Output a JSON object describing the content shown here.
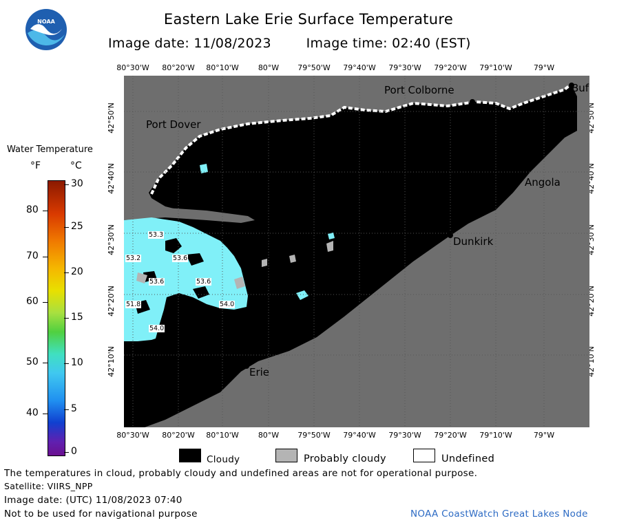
{
  "header": {
    "title": "Eastern Lake Erie Surface Temperature",
    "image_date": "Image date: 11/08/2023",
    "image_time": "Image time: 02:40 (EST)"
  },
  "logo": {
    "text": "NOAA",
    "colors": [
      "#1f5fb0",
      "#4db8e8",
      "#ffffff"
    ]
  },
  "scale": {
    "title": "Water Temperature",
    "f_unit": "°F",
    "c_unit": "°C",
    "f_ticks": [
      "80",
      "70",
      "60",
      "50",
      "40"
    ],
    "c_ticks": [
      "30",
      "25",
      "20",
      "15",
      "10",
      "5",
      "0"
    ]
  },
  "axes": {
    "lon_labels": [
      "80°30'W",
      "80°20'W",
      "80°10'W",
      "80°W",
      "79°50'W",
      "79°40'W",
      "79°30'W",
      "79°20'W",
      "79°10'W",
      "79°W"
    ],
    "lat_labels": [
      "42°50'N",
      "42°40'N",
      "42°30'N",
      "42°20'N",
      "42°10'N"
    ]
  },
  "places": {
    "port_dover": "Port Dover",
    "port_colborne": "Port Colborne",
    "buffalo": "Buf",
    "angola": "Angola",
    "dunkirk": "Dunkirk",
    "erie": "Erie"
  },
  "temperatures": [
    "53.3",
    "53.2",
    "53.6",
    "53.6",
    "53.6",
    "51.8",
    "54.0",
    "54.0"
  ],
  "legend": {
    "cloudy": "Cloudy",
    "probably_cloudy": "Probably cloudy",
    "undefined": "Undefined"
  },
  "footer": {
    "note": "The temperatures in cloud, probably cloudy and undefined areas are not for operational purpose.",
    "satellite": "Satellite: VIIRS_NPP",
    "utc_date": "Image date: (UTC) 11/08/2023  07:40",
    "nav_warning": "Not to be used for navigational purpose",
    "credit": "NOAA CoastWatch Great Lakes Node"
  },
  "colors": {
    "land": "#6e6e6e",
    "cloud": "#000000",
    "water_cold": "#80f0f8",
    "probably_cloudy": "#b4b4b4",
    "credit": "#2d6bc4"
  }
}
